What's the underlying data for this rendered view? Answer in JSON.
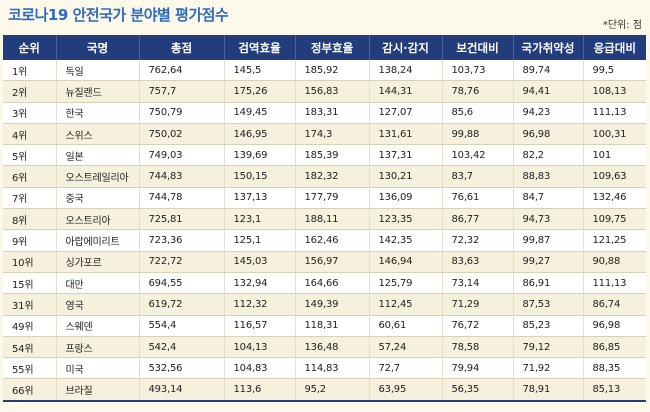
{
  "title": "코로나19 안전국가 분야별 평가점수",
  "unit_note": "*단위: 점",
  "columns": [
    "순위",
    "국명",
    "총점",
    "검역효율",
    "정부효율",
    "감시·감지",
    "보건대비",
    "국가취약성",
    "응급대비"
  ],
  "rows": [
    [
      "1위",
      "독일",
      "762,64",
      "145,5",
      "185,92",
      "138,24",
      "103,73",
      "89,74",
      "99,5"
    ],
    [
      "2위",
      "뉴질랜드",
      "757,7",
      "175,26",
      "156,83",
      "144,31",
      "78,76",
      "94,41",
      "108,13"
    ],
    [
      "3위",
      "한국",
      "750,79",
      "149,45",
      "183,31",
      "127,07",
      "85,6",
      "94,23",
      "111,13"
    ],
    [
      "4위",
      "스위스",
      "750,02",
      "146,95",
      "174,3",
      "131,61",
      "99,88",
      "96,98",
      "100,31"
    ],
    [
      "5위",
      "일본",
      "749,03",
      "139,69",
      "185,39",
      "137,31",
      "103,42",
      "82,2",
      "101"
    ],
    [
      "6위",
      "오스트레일리아",
      "744,83",
      "150,15",
      "182,32",
      "130,21",
      "83,7",
      "88,83",
      "109,63"
    ],
    [
      "7위",
      "중국",
      "744,78",
      "137,13",
      "177,79",
      "136,09",
      "76,61",
      "84,7",
      "132,46"
    ],
    [
      "8위",
      "오스트리아",
      "725,81",
      "123,1",
      "188,11",
      "123,35",
      "86,77",
      "94,73",
      "109,75"
    ],
    [
      "9위",
      "아랍에미리트",
      "723,36",
      "125,1",
      "162,46",
      "142,35",
      "72,32",
      "99,87",
      "121,25"
    ],
    [
      "10위",
      "싱가포르",
      "722,72",
      "145,03",
      "156,97",
      "146,94",
      "83,63",
      "99,27",
      "90,88"
    ],
    [
      "15위",
      "대만",
      "694,55",
      "132,94",
      "164,66",
      "125,79",
      "73,14",
      "86,91",
      "111,13"
    ],
    [
      "31위",
      "영국",
      "619,72",
      "112,32",
      "149,39",
      "112,45",
      "71,29",
      "87,53",
      "86,74"
    ],
    [
      "49위",
      "스웨덴",
      "554,4",
      "116,57",
      "118,31",
      "60,61",
      "76,72",
      "85,23",
      "96,98"
    ],
    [
      "54위",
      "프랑스",
      "542,4",
      "104,13",
      "136,48",
      "57,24",
      "78,58",
      "79,12",
      "86,85"
    ],
    [
      "55위",
      "미국",
      "532,56",
      "104,83",
      "114,83",
      "72,7",
      "79,94",
      "71,92",
      "88,35"
    ],
    [
      "66위",
      "브라질",
      "493,14",
      "113,6",
      "95,2",
      "63,95",
      "56,35",
      "78,91",
      "85,13"
    ]
  ]
}
